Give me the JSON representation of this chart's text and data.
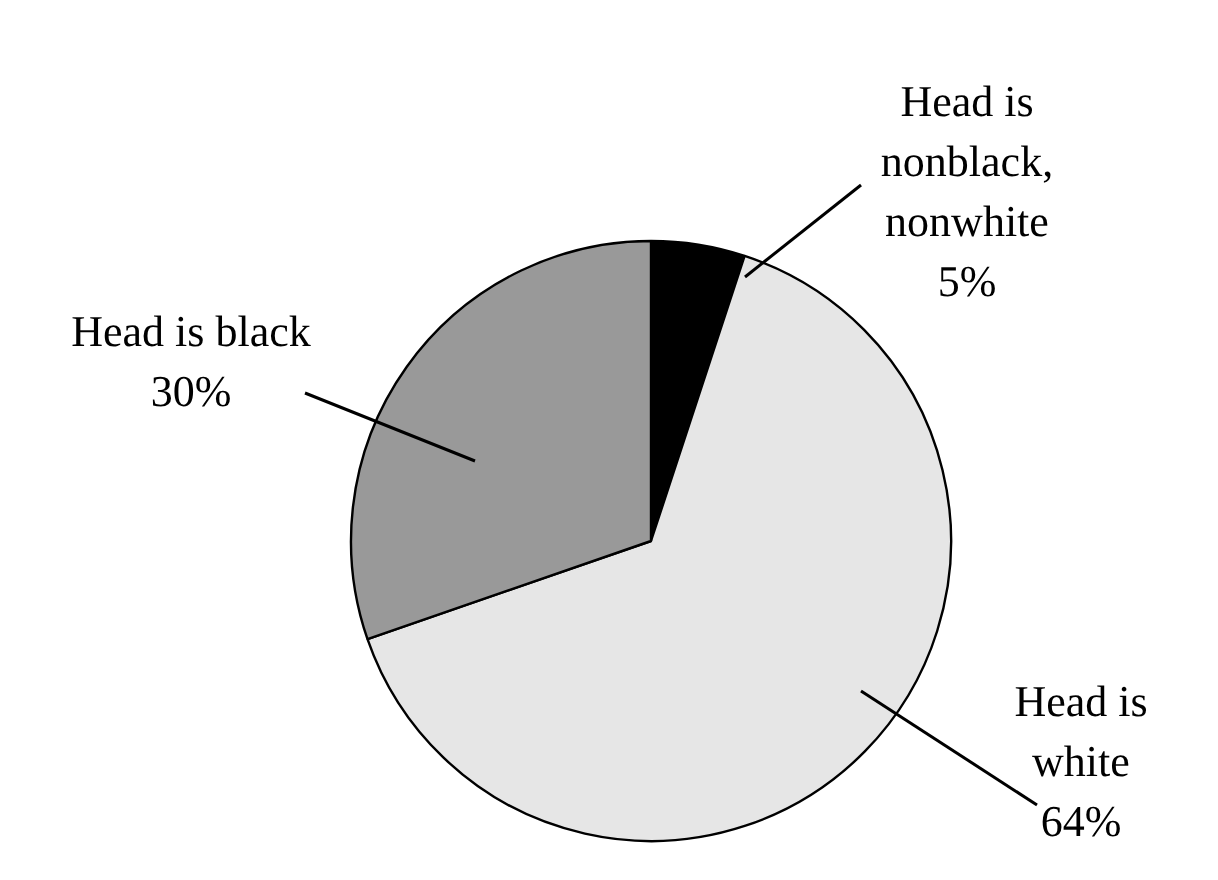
{
  "chart_data": {
    "type": "pie",
    "categories": [
      "Head is\nnonblack,\nnonwhite",
      "Head is\nwhite",
      "Head is black"
    ],
    "values": [
      5,
      64,
      30
    ],
    "colors": [
      "#000000",
      "#e6e6e6",
      "#999999"
    ],
    "value_labels": [
      "5%",
      "64%",
      "30%"
    ]
  }
}
